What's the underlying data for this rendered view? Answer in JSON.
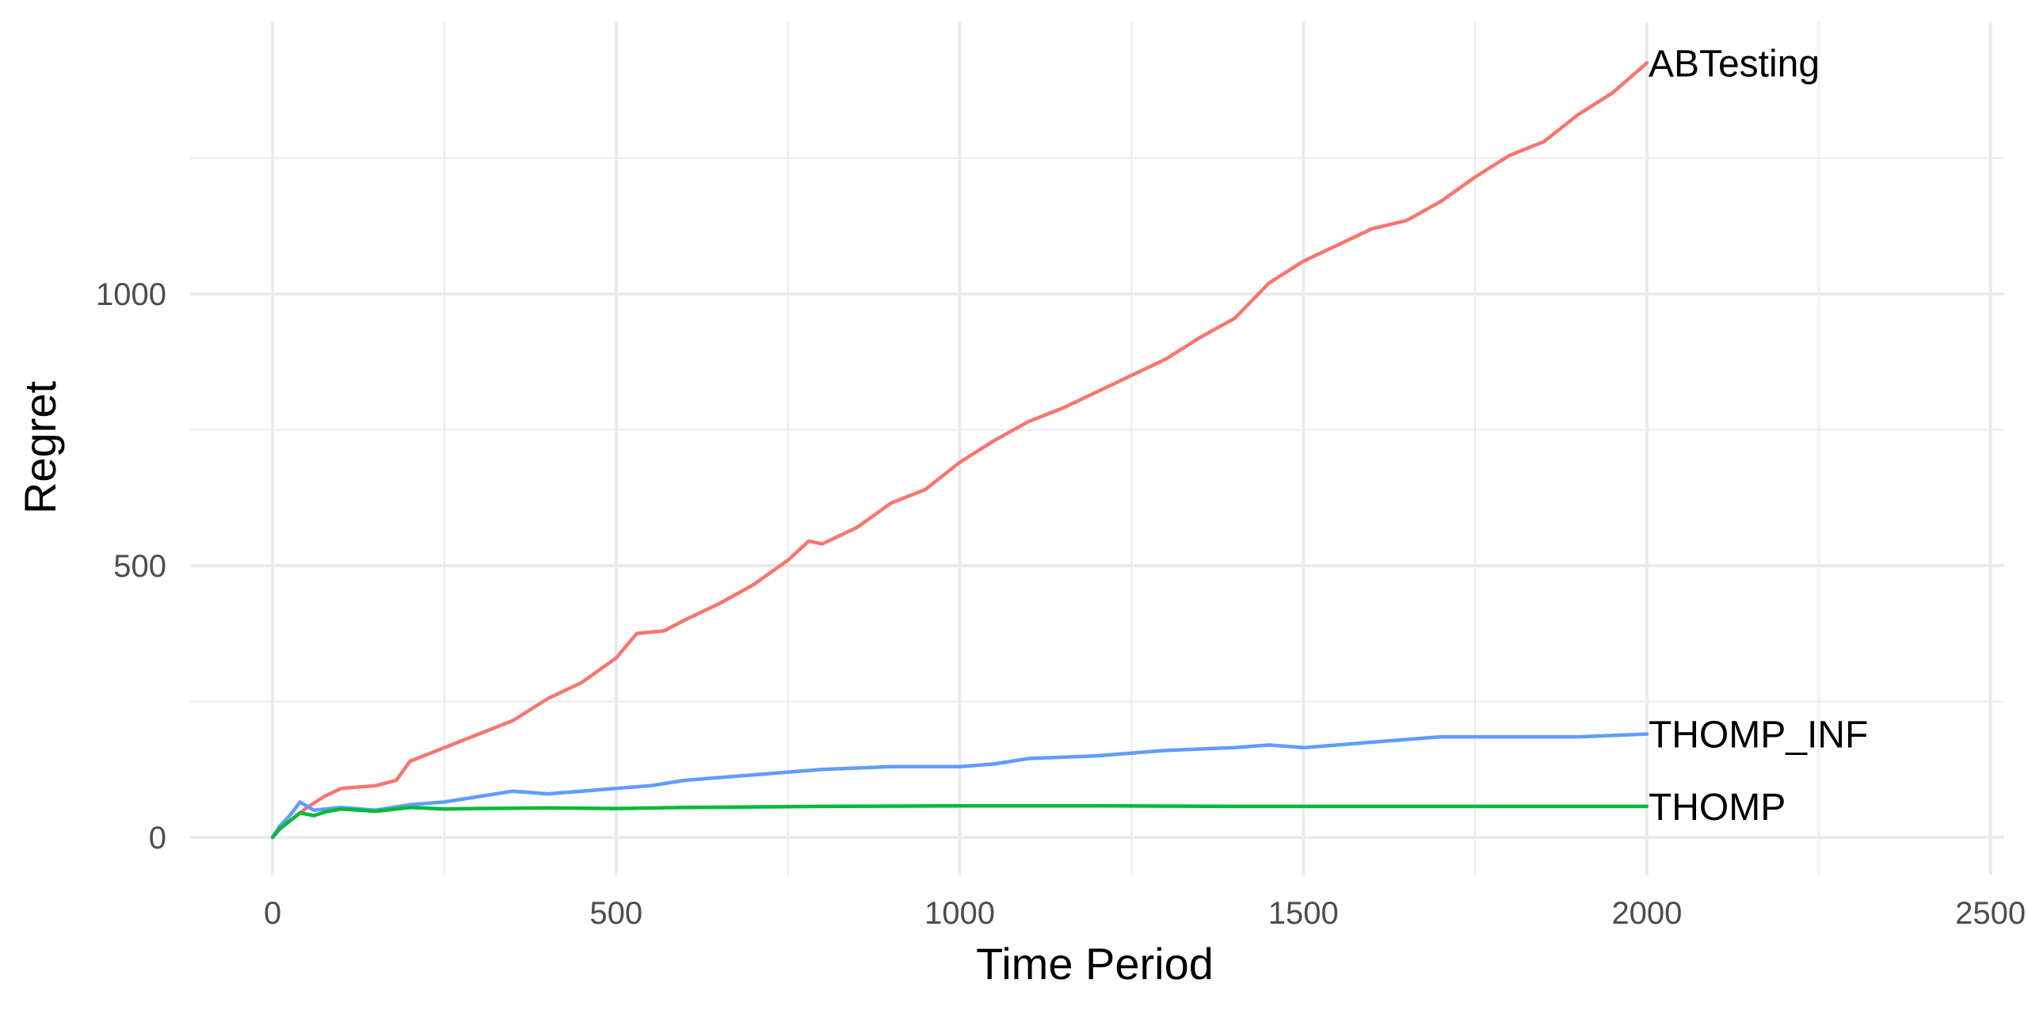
{
  "chart_data": {
    "type": "line",
    "title": "",
    "xlabel": "Time Period",
    "ylabel": "Regret",
    "xlim": [
      -120,
      2520
    ],
    "ylim": [
      -70,
      1500
    ],
    "x_ticks": [
      0,
      500,
      1000,
      1500,
      2000,
      2500
    ],
    "x_tick_labels": [
      "0",
      "500",
      "1000",
      "1500",
      "2000",
      "2500"
    ],
    "y_ticks": [
      0,
      500,
      1000
    ],
    "y_tick_labels": [
      "0",
      "500",
      "1000"
    ],
    "grid": true,
    "legend": "direct labels at line ends",
    "series": [
      {
        "name": "ABTesting",
        "color": "#F8766D",
        "x": [
          0,
          10,
          25,
          50,
          75,
          100,
          150,
          180,
          200,
          250,
          300,
          350,
          400,
          450,
          500,
          530,
          570,
          600,
          650,
          700,
          750,
          780,
          800,
          850,
          900,
          950,
          1000,
          1050,
          1100,
          1150,
          1200,
          1250,
          1300,
          1350,
          1400,
          1450,
          1500,
          1550,
          1600,
          1650,
          1700,
          1750,
          1800,
          1850,
          1900,
          1950,
          2000
        ],
        "y": [
          0,
          15,
          30,
          55,
          75,
          90,
          95,
          105,
          140,
          165,
          190,
          215,
          255,
          285,
          330,
          375,
          380,
          400,
          430,
          465,
          510,
          545,
          540,
          570,
          615,
          640,
          690,
          730,
          765,
          790,
          820,
          850,
          880,
          920,
          955,
          1020,
          1060,
          1090,
          1120,
          1135,
          1170,
          1215,
          1255,
          1280,
          1330,
          1370,
          1425
        ]
      },
      {
        "name": "THOMP_INF",
        "color": "#619CFF",
        "x": [
          0,
          10,
          25,
          40,
          60,
          100,
          150,
          200,
          250,
          300,
          350,
          400,
          450,
          500,
          550,
          600,
          700,
          800,
          900,
          1000,
          1050,
          1100,
          1200,
          1300,
          1400,
          1450,
          1500,
          1600,
          1700,
          1800,
          1900,
          2000
        ],
        "y": [
          0,
          20,
          40,
          65,
          50,
          55,
          50,
          60,
          65,
          75,
          85,
          80,
          85,
          90,
          95,
          105,
          115,
          125,
          130,
          130,
          135,
          145,
          150,
          160,
          165,
          170,
          165,
          175,
          185,
          185,
          185,
          190
        ]
      },
      {
        "name": "THOMP",
        "color": "#00BA38",
        "x": [
          0,
          10,
          25,
          40,
          60,
          80,
          100,
          150,
          200,
          250,
          300,
          400,
          500,
          600,
          800,
          1000,
          1200,
          1400,
          1600,
          1800,
          2000
        ],
        "y": [
          0,
          15,
          30,
          45,
          40,
          48,
          52,
          48,
          55,
          52,
          53,
          54,
          53,
          55,
          57,
          58,
          58,
          57,
          57,
          57,
          57
        ]
      }
    ]
  }
}
